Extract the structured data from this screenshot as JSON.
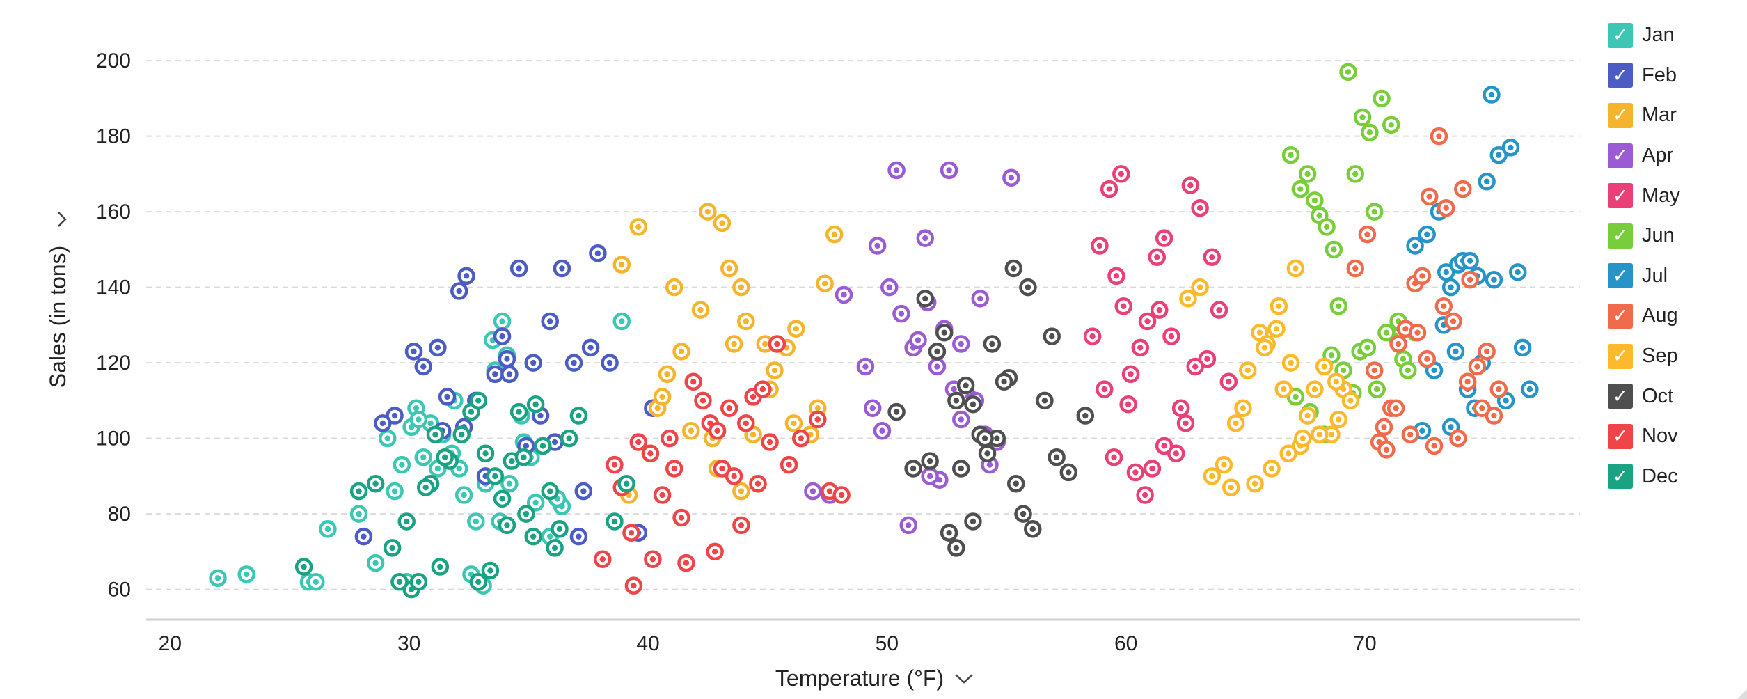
{
  "chart_data": {
    "type": "scatter",
    "title": "",
    "xlabel": "Temperature (°F)",
    "ylabel": "Sales (in tons)",
    "xlim": [
      19,
      79
    ],
    "ylim": [
      52,
      205
    ],
    "x_ticks": [
      20,
      30,
      40,
      50,
      60,
      70
    ],
    "y_ticks": [
      60,
      80,
      100,
      120,
      140,
      160,
      180,
      200
    ],
    "grid": "horizontal dashed",
    "legend_position": "right",
    "axis_menu_icon": "chevron-down-icon",
    "series": [
      {
        "name": "Jan",
        "color": "#3cc7b4",
        "x": [
          22,
          23.2,
          25.8,
          26.1,
          26.6,
          27.9,
          28.6,
          29.1,
          29.4,
          29.7,
          30.1,
          30.3,
          30.6,
          31.2,
          31.4,
          31.9,
          32.3,
          32.8,
          33.2,
          33.5,
          33.9,
          34.1,
          34.7,
          35.3,
          35.9,
          36.4,
          32.6,
          33.1,
          34.2,
          35.1,
          33.6,
          31.8,
          30.9,
          29.9,
          34.8,
          36.2,
          38.9,
          32.1,
          30.4,
          33.8
        ],
        "y": [
          63,
          64,
          62,
          62,
          76,
          80,
          67,
          100,
          86,
          93,
          103,
          108,
          95,
          92,
          101,
          110,
          85,
          78,
          88,
          126,
          131,
          122,
          106,
          83,
          74,
          82,
          64,
          61,
          88,
          95,
          118,
          96,
          104,
          62,
          99,
          84,
          131,
          92,
          105,
          78
        ]
      },
      {
        "name": "Feb",
        "color": "#4b5cc4",
        "x": [
          28.1,
          29.4,
          30.6,
          31.2,
          31.6,
          32.1,
          32.4,
          32.8,
          33.2,
          33.6,
          34.1,
          34.6,
          35.2,
          35.9,
          36.4,
          36.9,
          37.3,
          37.6,
          37.9,
          38.4,
          39.6,
          40.2,
          32.3,
          34.9,
          36.1,
          31.4,
          33.9,
          35.5,
          37.1,
          28.9,
          30.2,
          34.2
        ],
        "y": [
          74,
          106,
          119,
          124,
          111,
          139,
          143,
          110,
          90,
          117,
          121,
          145,
          120,
          131,
          145,
          120,
          86,
          124,
          149,
          120,
          75,
          108,
          103,
          98,
          99,
          102,
          127,
          106,
          74,
          104,
          123,
          117
        ]
      },
      {
        "name": "Mar",
        "color": "#f4b42c",
        "x": [
          39.2,
          40.1,
          40.8,
          41.4,
          42.2,
          42.5,
          43.1,
          43.4,
          43.9,
          44.4,
          44.9,
          45.3,
          45.8,
          46.2,
          46.8,
          47.1,
          47.4,
          47.8,
          38.9,
          39.6,
          40.4,
          41.8,
          42.9,
          43.6,
          44.1,
          45.1,
          46.1,
          41.1,
          42.7,
          43.9,
          40.6,
          44.6
        ],
        "y": [
          85,
          96,
          117,
          123,
          134,
          160,
          157,
          145,
          140,
          101,
          125,
          118,
          124,
          129,
          101,
          108,
          141,
          154,
          146,
          156,
          108,
          102,
          92,
          125,
          131,
          113,
          104,
          140,
          100,
          86,
          111,
          88
        ]
      },
      {
        "name": "Apr",
        "color": "#9a5bd4",
        "x": [
          49.1,
          49.4,
          49.8,
          50.1,
          50.6,
          51.1,
          51.3,
          51.7,
          52.1,
          52.4,
          52.8,
          53.1,
          53.4,
          53.7,
          54.1,
          54.6,
          55.2,
          50.4,
          51.6,
          52.6,
          53.9,
          49.6,
          48.2,
          46.9,
          47.6,
          52.2,
          53.1,
          54.3,
          50.9,
          51.8
        ],
        "y": [
          119,
          108,
          102,
          140,
          133,
          124,
          126,
          136,
          119,
          129,
          113,
          125,
          111,
          110,
          101,
          99,
          169,
          171,
          153,
          171,
          137,
          151,
          138,
          86,
          85,
          89,
          105,
          93,
          77,
          90
        ]
      },
      {
        "name": "May",
        "color": "#ea3f77",
        "x": [
          58.9,
          59.3,
          59.6,
          59.9,
          60.2,
          60.6,
          60.9,
          61.3,
          61.6,
          61.9,
          62.3,
          62.7,
          63.1,
          63.4,
          63.9,
          64.3,
          59.1,
          59.8,
          60.4,
          61.1,
          62.1,
          62.9,
          60.8,
          61.6,
          58.6,
          59.5,
          60.1,
          62.5,
          61.4,
          63.6
        ],
        "y": [
          151,
          166,
          143,
          135,
          117,
          124,
          131,
          148,
          153,
          127,
          108,
          167,
          161,
          121,
          134,
          115,
          113,
          170,
          91,
          92,
          96,
          119,
          85,
          98,
          127,
          95,
          109,
          104,
          134,
          148
        ]
      },
      {
        "name": "Jun",
        "color": "#78cd3a",
        "x": [
          66.9,
          67.3,
          67.6,
          67.9,
          68.1,
          68.4,
          68.7,
          68.9,
          69.3,
          69.6,
          69.9,
          70.2,
          70.4,
          70.7,
          71.1,
          71.3,
          71.6,
          72.1,
          67.1,
          67.7,
          68.3,
          69.1,
          69.8,
          70.1,
          70.9,
          71.4,
          68.6,
          69.5,
          70.5,
          71.8
        ],
        "y": [
          175,
          166,
          170,
          163,
          159,
          156,
          150,
          135,
          197,
          170,
          185,
          181,
          160,
          190,
          183,
          127,
          121,
          128,
          111,
          107,
          101,
          118,
          123,
          124,
          128,
          131,
          122,
          112,
          113,
          118
        ]
      },
      {
        "name": "Jul",
        "color": "#2694c7",
        "x": [
          72.1,
          72.6,
          73.1,
          73.4,
          73.6,
          73.9,
          74.1,
          74.4,
          74.7,
          75.1,
          75.3,
          75.6,
          76.1,
          76.4,
          76.9,
          72.9,
          73.3,
          73.8,
          74.3,
          75.9,
          75.4,
          74.9,
          73.6,
          72.4,
          76.6,
          74.6
        ],
        "y": [
          151,
          154,
          160,
          144,
          140,
          146,
          147,
          147,
          143,
          168,
          191,
          175,
          177,
          144,
          113,
          118,
          130,
          123,
          113,
          110,
          142,
          120,
          103,
          102,
          124,
          108
        ]
      },
      {
        "name": "Aug",
        "color": "#f06b4c",
        "x": [
          69.6,
          70.1,
          70.4,
          70.8,
          71.1,
          71.4,
          71.7,
          72.1,
          72.4,
          72.7,
          73.1,
          73.4,
          73.7,
          74.1,
          74.4,
          74.7,
          75.1,
          75.4,
          71.9,
          72.9,
          73.9,
          74.9,
          70.6,
          71.3,
          72.6,
          73.3,
          74.3,
          75.6,
          70.9,
          72.2
        ],
        "y": [
          145,
          154,
          118,
          103,
          108,
          125,
          129,
          141,
          143,
          164,
          180,
          161,
          131,
          166,
          142,
          119,
          123,
          106,
          101,
          98,
          100,
          108,
          99,
          108,
          121,
          135,
          115,
          113,
          97,
          128
        ]
      },
      {
        "name": "Sep",
        "color": "#fbb92b",
        "x": [
          64.1,
          64.6,
          65.1,
          65.6,
          65.9,
          66.3,
          66.6,
          66.9,
          67.3,
          67.6,
          67.9,
          68.3,
          68.6,
          68.9,
          69.1,
          64.4,
          65.4,
          66.1,
          66.8,
          67.4,
          68.1,
          63.6,
          64.9,
          65.8,
          66.4,
          62.6,
          63.1,
          67.1,
          68.8,
          69.4
        ],
        "y": [
          93,
          104,
          118,
          128,
          125,
          129,
          113,
          120,
          98,
          106,
          113,
          119,
          101,
          105,
          113,
          87,
          88,
          92,
          96,
          100,
          101,
          90,
          108,
          124,
          135,
          137,
          140,
          145,
          115,
          110
        ]
      },
      {
        "name": "Oct",
        "color": "#4f4f4f",
        "x": [
          50.4,
          51.1,
          51.6,
          52.1,
          52.4,
          52.9,
          53.3,
          53.6,
          53.9,
          54.2,
          54.6,
          55.1,
          55.4,
          55.7,
          56.1,
          56.6,
          57.1,
          57.6,
          58.3,
          52.6,
          53.1,
          54.1,
          54.9,
          55.3,
          52.9,
          53.6,
          54.4,
          56.9,
          51.8,
          55.9
        ],
        "y": [
          107,
          92,
          137,
          123,
          128,
          110,
          114,
          109,
          101,
          96,
          100,
          116,
          88,
          80,
          76,
          110,
          95,
          91,
          106,
          75,
          92,
          100,
          115,
          145,
          71,
          78,
          125,
          127,
          94,
          140
        ]
      },
      {
        "name": "Nov",
        "color": "#ef4448",
        "x": [
          38.6,
          38.9,
          39.3,
          39.6,
          40.1,
          40.6,
          40.9,
          41.1,
          41.4,
          41.9,
          42.3,
          42.6,
          42.9,
          43.1,
          43.6,
          43.9,
          44.1,
          44.4,
          44.8,
          45.1,
          45.4,
          45.9,
          46.4,
          47.1,
          47.6,
          48.1,
          38.1,
          39.4,
          40.2,
          41.6,
          42.8,
          43.4,
          44.6
        ],
        "y": [
          93,
          87,
          75,
          99,
          96,
          85,
          100,
          92,
          79,
          115,
          110,
          104,
          102,
          92,
          90,
          77,
          104,
          111,
          113,
          99,
          125,
          93,
          100,
          105,
          86,
          85,
          68,
          61,
          68,
          67,
          70,
          108,
          88
        ]
      },
      {
        "name": "Dec",
        "color": "#1aa382",
        "x": [
          25.6,
          27.9,
          28.6,
          29.3,
          29.9,
          30.1,
          30.4,
          30.9,
          31.3,
          31.7,
          32.2,
          32.6,
          32.9,
          33.2,
          33.6,
          33.9,
          34.3,
          34.6,
          34.9,
          35.3,
          35.6,
          35.9,
          36.3,
          36.7,
          37.1,
          38.6,
          39.1,
          29.6,
          30.7,
          32.9,
          34.1,
          35.2,
          31.5,
          33.4,
          36.1,
          34.8,
          31.1
        ],
        "y": [
          66,
          86,
          88,
          71,
          78,
          60,
          62,
          88,
          66,
          94,
          101,
          107,
          110,
          96,
          90,
          84,
          94,
          107,
          80,
          109,
          98,
          86,
          76,
          100,
          106,
          78,
          88,
          62,
          87,
          62,
          77,
          74,
          95,
          65,
          71,
          95,
          101
        ]
      }
    ]
  }
}
